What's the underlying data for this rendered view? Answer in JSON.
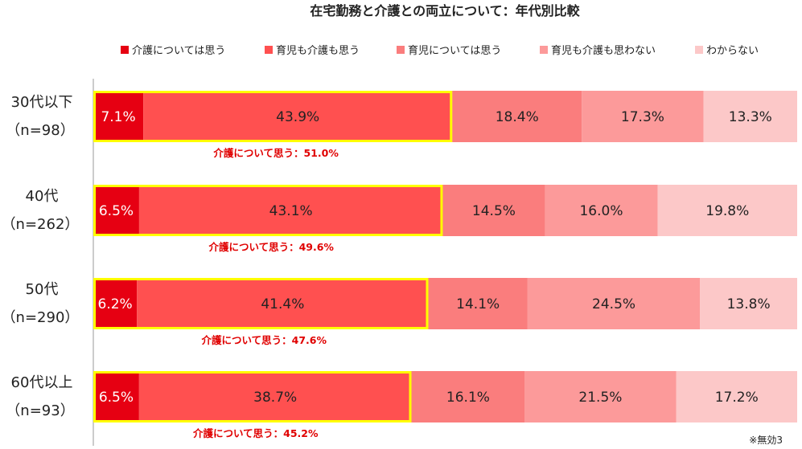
{
  "chart_data": {
    "type": "bar",
    "orientation": "horizontal",
    "stacked": true,
    "percent": true,
    "title": "在宅勤務と介護との両立について：年代別比較",
    "categories": [
      {
        "label": "30代以下",
        "n": "（n=98）"
      },
      {
        "label": "40代",
        "n": "（n=262）"
      },
      {
        "label": "50代",
        "n": "（n=290）"
      },
      {
        "label": "60代以上",
        "n": "（n=93）"
      }
    ],
    "series": [
      {
        "name": "介護については思う",
        "color": "#e60012",
        "values": [
          7.1,
          6.5,
          6.2,
          6.5
        ]
      },
      {
        "name": "育児も介護も思う",
        "color": "#ff5050",
        "values": [
          43.9,
          43.1,
          41.4,
          38.7
        ]
      },
      {
        "name": "育児については思う",
        "color": "#fa7d7d",
        "values": [
          18.4,
          14.5,
          14.1,
          16.1
        ]
      },
      {
        "name": "育児も介護も思わない",
        "color": "#fc9a9a",
        "values": [
          17.3,
          16.0,
          24.5,
          21.5
        ]
      },
      {
        "name": "わからない",
        "color": "#fcc8c8",
        "values": [
          13.3,
          19.8,
          13.8,
          17.2
        ]
      }
    ],
    "value_labels": [
      [
        "7.1%",
        "43.9%",
        "18.4%",
        "17.3%",
        "13.3%"
      ],
      [
        "6.5%",
        "43.1%",
        "14.5%",
        "16.0%",
        "19.8%"
      ],
      [
        "6.2%",
        "41.4%",
        "14.1%",
        "24.5%",
        "13.8%"
      ],
      [
        "6.5%",
        "38.7%",
        "16.1%",
        "21.5%",
        "17.2%"
      ]
    ],
    "highlight": {
      "color": "#ffff00",
      "series_covered": 2,
      "labels": [
        "介護について思う：51.0%",
        "介護について思う：49.6%",
        "介護について思う：47.6%",
        "介護について思う：45.2%"
      ]
    },
    "legend_position": "top",
    "xlim": [
      0,
      100
    ]
  },
  "note": "※無効3"
}
